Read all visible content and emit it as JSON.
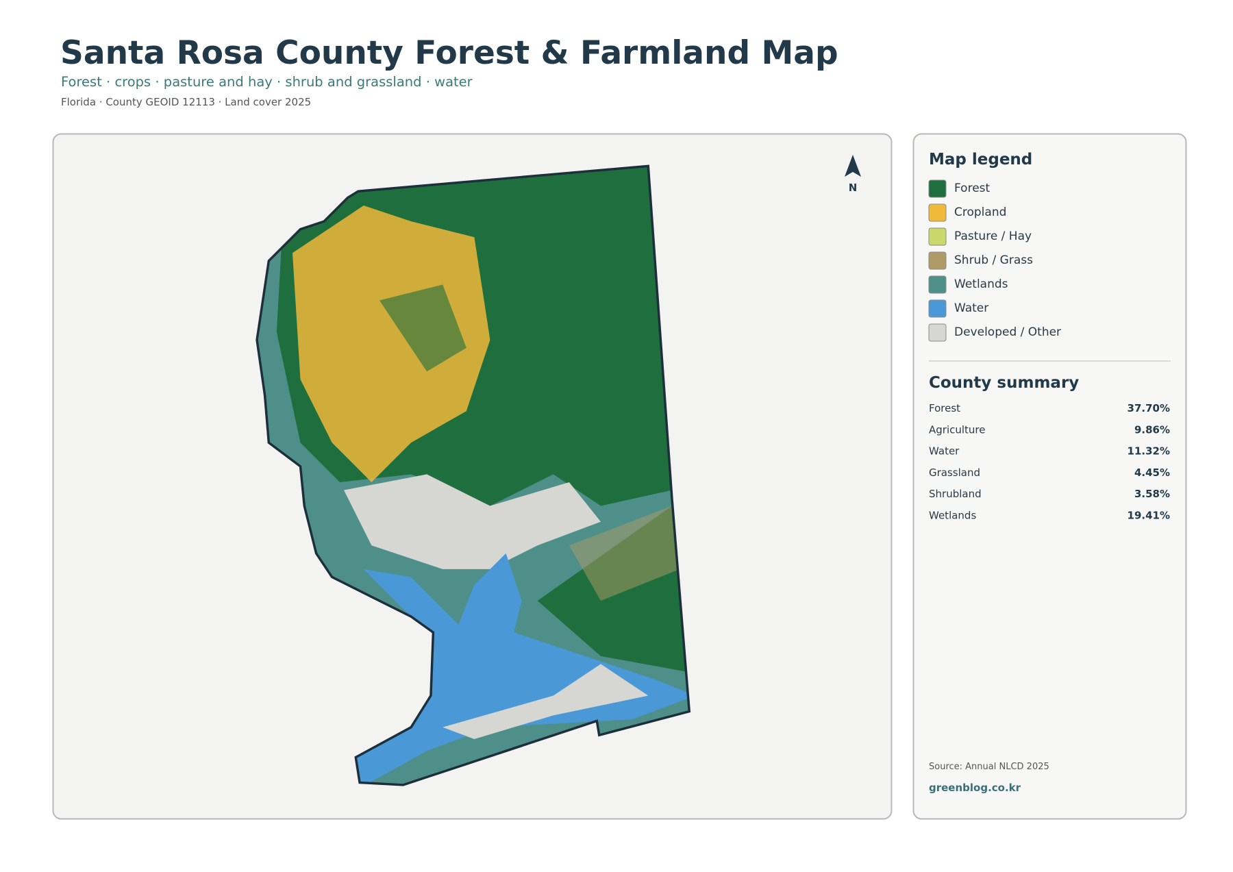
{
  "header": {
    "title": "Santa Rosa County Forest & Farmland Map",
    "subtitle": "Forest · crops · pasture and hay · shrub and grassland · water",
    "meta": "Florida · County GEOID 12113 · Land cover 2025"
  },
  "map": {
    "north_label": "N"
  },
  "legend": {
    "title": "Map legend",
    "items": [
      {
        "label": "Forest",
        "color": "#1f6e3d"
      },
      {
        "label": "Cropland",
        "color": "#f0b93a"
      },
      {
        "label": "Pasture / Hay",
        "color": "#c8d86a"
      },
      {
        "label": "Shrub / Grass",
        "color": "#b09b66"
      },
      {
        "label": "Wetlands",
        "color": "#4e8f8a"
      },
      {
        "label": "Water",
        "color": "#4a98d6"
      },
      {
        "label": "Developed / Other",
        "color": "#d6d6d2"
      }
    ]
  },
  "summary": {
    "title": "County summary",
    "rows": [
      [
        "Forest",
        "37.70%"
      ],
      [
        "Agriculture",
        "9.86%"
      ],
      [
        "Water",
        "11.32%"
      ],
      [
        "Grassland",
        "4.45%"
      ],
      [
        "Shrubland",
        "3.58%"
      ],
      [
        "Wetlands",
        "19.41%"
      ]
    ]
  },
  "footer": {
    "source": "Source: Annual NLCD 2025",
    "site": "greenblog.co.kr"
  }
}
